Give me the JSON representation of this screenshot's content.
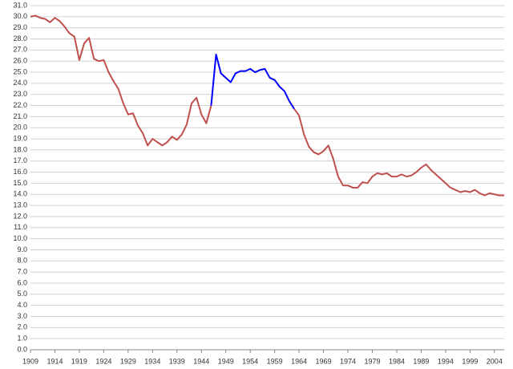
{
  "chart_data": {
    "type": "line",
    "x": [
      1909,
      1910,
      1911,
      1912,
      1913,
      1914,
      1915,
      1916,
      1917,
      1918,
      1919,
      1920,
      1921,
      1922,
      1923,
      1924,
      1925,
      1926,
      1927,
      1928,
      1929,
      1930,
      1931,
      1932,
      1933,
      1934,
      1935,
      1936,
      1937,
      1938,
      1939,
      1940,
      1941,
      1942,
      1943,
      1944,
      1945,
      1946,
      1947,
      1948,
      1949,
      1950,
      1951,
      1952,
      1953,
      1954,
      1955,
      1956,
      1957,
      1958,
      1959,
      1960,
      1961,
      1962,
      1963,
      1964,
      1965,
      1966,
      1967,
      1968,
      1969,
      1970,
      1971,
      1972,
      1973,
      1974,
      1975,
      1976,
      1977,
      1978,
      1979,
      1980,
      1981,
      1982,
      1983,
      1984,
      1985,
      1986,
      1987,
      1988,
      1989,
      1990,
      1991,
      1992,
      1993,
      1994,
      1995,
      1996,
      1997,
      1998,
      1999,
      2000,
      2001,
      2002,
      2003,
      2004,
      2005,
      2006
    ],
    "series": [
      {
        "color": "#c0504d",
        "values": [
          30.0,
          30.1,
          29.9,
          29.8,
          29.5,
          29.9,
          29.6,
          29.1,
          28.5,
          28.2,
          26.1,
          27.6,
          28.1,
          26.2,
          26.0,
          26.1,
          25.0,
          24.2,
          23.5,
          22.2,
          21.2,
          21.3,
          20.2,
          19.5,
          18.4,
          19.0,
          18.7,
          18.4,
          18.7,
          19.2,
          18.9,
          19.4,
          20.3,
          22.2,
          22.7,
          21.2,
          20.4,
          22.0,
          null,
          null,
          null,
          null,
          null,
          null,
          null,
          null,
          null,
          null,
          null,
          null,
          null,
          null,
          null,
          null,
          21.7,
          21.1,
          19.4,
          18.3,
          17.8,
          17.6,
          17.9,
          18.4,
          17.2,
          15.6,
          14.8,
          14.8,
          14.6,
          14.6,
          15.1,
          15.0,
          15.6,
          15.9,
          15.8,
          15.9,
          15.6,
          15.6,
          15.8,
          15.6,
          15.7,
          16.0,
          16.4,
          16.7,
          16.2,
          15.8,
          15.4,
          15.0,
          14.6,
          14.4,
          14.2,
          14.3,
          14.2,
          14.4,
          14.1,
          13.9,
          14.1,
          14.0,
          13.9,
          13.9
        ]
      },
      {
        "color": "#0000ff",
        "values": [
          null,
          null,
          null,
          null,
          null,
          null,
          null,
          null,
          null,
          null,
          null,
          null,
          null,
          null,
          null,
          null,
          null,
          null,
          null,
          null,
          null,
          null,
          null,
          null,
          null,
          null,
          null,
          null,
          null,
          null,
          null,
          null,
          null,
          null,
          null,
          null,
          null,
          22.0,
          26.6,
          24.9,
          24.5,
          24.1,
          24.9,
          25.1,
          25.1,
          25.3,
          25.0,
          25.2,
          25.3,
          24.5,
          24.3,
          23.7,
          23.3,
          22.4,
          21.7,
          null,
          null,
          null,
          null,
          null,
          null,
          null,
          null,
          null,
          null,
          null,
          null,
          null,
          null,
          null,
          null,
          null,
          null,
          null,
          null,
          null,
          null,
          null,
          null,
          null,
          null,
          null,
          null,
          null,
          null,
          null,
          null,
          null,
          null,
          null,
          null,
          null,
          null,
          null,
          null,
          null,
          null,
          null
        ]
      }
    ],
    "xlim": [
      1909,
      2006
    ],
    "xticks": [
      1909,
      1914,
      1919,
      1924,
      1929,
      1934,
      1939,
      1944,
      1949,
      1954,
      1959,
      1964,
      1969,
      1974,
      1979,
      1984,
      1989,
      1994,
      1999,
      2004
    ],
    "ylim": [
      0,
      31
    ],
    "yticks": [
      {
        "value": 0,
        "label": "0.0"
      },
      {
        "value": 1,
        "label": "1.0"
      },
      {
        "value": 2,
        "label": "2.0"
      },
      {
        "value": 3,
        "label": "3.0"
      },
      {
        "value": 4,
        "label": "4.0"
      },
      {
        "value": 5,
        "label": "5.0"
      },
      {
        "value": 6,
        "label": "6.0"
      },
      {
        "value": 7,
        "label": "7.0"
      },
      {
        "value": 8,
        "label": "8.0"
      },
      {
        "value": 9,
        "label": "9.0"
      },
      {
        "value": 10,
        "label": "10.0"
      },
      {
        "value": 11,
        "label": "11.0"
      },
      {
        "value": 12,
        "label": "12.0"
      },
      {
        "value": 13,
        "label": "13.0"
      },
      {
        "value": 14,
        "label": "14.0"
      },
      {
        "value": 15,
        "label": "15.0"
      },
      {
        "value": 16,
        "label": "16.0"
      },
      {
        "value": 17,
        "label": "17.0"
      },
      {
        "value": 18,
        "label": "18.0"
      },
      {
        "value": 19,
        "label": "19.0"
      },
      {
        "value": 20,
        "label": "20.0"
      },
      {
        "value": 21,
        "label": "21.0"
      },
      {
        "value": 22,
        "label": "22.0"
      },
      {
        "value": 23,
        "label": "23.0"
      },
      {
        "value": 24,
        "label": "24.0"
      },
      {
        "value": 25,
        "label": "25.0"
      },
      {
        "value": 26,
        "label": "26.0"
      },
      {
        "value": 27,
        "label": "27.0"
      },
      {
        "value": 28,
        "label": "28.0"
      },
      {
        "value": 29,
        "label": "29.0"
      },
      {
        "value": 30,
        "label": "30.0"
      },
      {
        "value": 31,
        "label": "31.0"
      }
    ],
    "grid": true
  }
}
